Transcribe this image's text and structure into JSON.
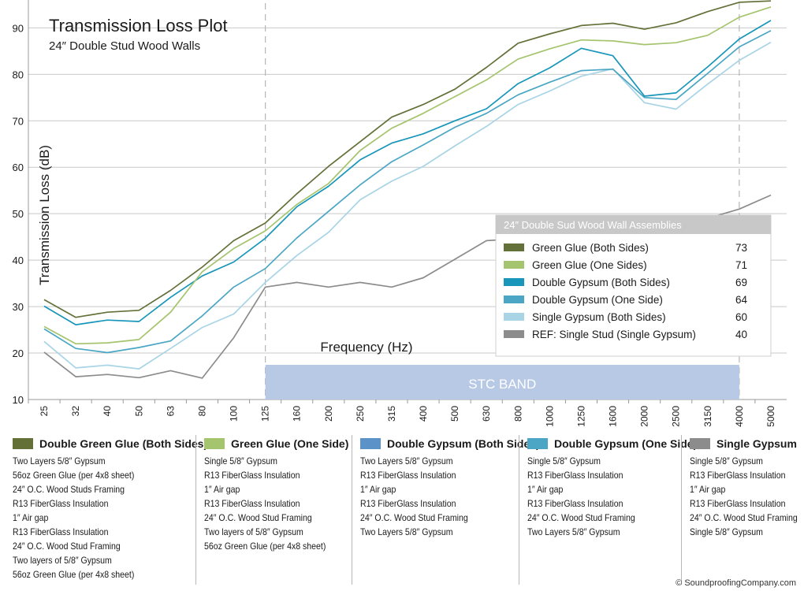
{
  "chart_data": {
    "type": "line",
    "title": "Transmission Loss Plot",
    "subtitle": "24″ Double Stud Wood Walls",
    "xlabel": "Frequency (Hz)",
    "ylabel": "Transmission Loss (dB)",
    "ylim": [
      10,
      96
    ],
    "yticks": [
      10,
      20,
      30,
      40,
      50,
      60,
      70,
      80,
      90
    ],
    "grid": true,
    "categories": [
      "25",
      "32",
      "40",
      "50",
      "63",
      "80",
      "100",
      "125",
      "160",
      "200",
      "250",
      "315",
      "400",
      "500",
      "630",
      "800",
      "1000",
      "1250",
      "1600",
      "2000",
      "2500",
      "3150",
      "4000",
      "5000"
    ],
    "band": {
      "label": "STC BAND",
      "from": "125",
      "to": "4000"
    },
    "legend": {
      "title": "24″ Double Sud Wood Wall Assemblies",
      "placement": "right"
    },
    "series": [
      {
        "name": "Green Glue  (Both Sides)",
        "stc": "73",
        "color": "#637139",
        "values": [
          31.5,
          27.7,
          28.8,
          29.2,
          33.5,
          38.5,
          44.2,
          48.0,
          54.3,
          60.2,
          65.5,
          70.8,
          73.5,
          76.8,
          81.5,
          86.7,
          88.7,
          90.5,
          91.0,
          89.7,
          91.1,
          93.5,
          95.5,
          95.8
        ]
      },
      {
        "name": "Green Glue  (One Sides)",
        "stc": "71",
        "color": "#a5c46e",
        "values": [
          25.7,
          22.0,
          22.2,
          22.9,
          28.8,
          37.5,
          42.5,
          46.3,
          52.0,
          56.5,
          63.6,
          68.4,
          71.6,
          75.2,
          78.8,
          83.3,
          85.5,
          87.4,
          87.2,
          86.4,
          86.8,
          88.4,
          92.3,
          94.5
        ]
      },
      {
        "name": "Double Gypsum (Both Sides)",
        "stc": "69",
        "color": "#1896ba",
        "values": [
          30.1,
          26.1,
          27.1,
          26.8,
          32.0,
          36.6,
          39.6,
          44.7,
          51.5,
          55.9,
          61.6,
          65.2,
          67.2,
          70.0,
          72.6,
          78.0,
          81.4,
          85.6,
          84.0,
          75.3,
          76.0,
          81.6,
          87.6,
          91.6
        ]
      },
      {
        "name": "Double Gypsum (One Side)",
        "stc": "64",
        "color": "#4aa6c4",
        "values": [
          25.2,
          21.0,
          20.1,
          21.2,
          22.6,
          28.0,
          34.2,
          38.2,
          44.8,
          50.5,
          56.2,
          61.2,
          64.8,
          68.6,
          71.6,
          75.6,
          78.3,
          80.8,
          81.1,
          75.0,
          74.6,
          80.2,
          85.9,
          89.4
        ]
      },
      {
        "name": "Single Gypsum (Both Sides)",
        "stc": "60",
        "color": "#a8d4e6",
        "values": [
          22.5,
          16.8,
          17.4,
          16.6,
          21.0,
          25.5,
          28.4,
          35.2,
          41.0,
          46.0,
          53.0,
          57.0,
          60.2,
          64.6,
          68.8,
          73.5,
          76.4,
          79.6,
          81.2,
          73.9,
          72.5,
          77.9,
          83.0,
          86.9
        ]
      },
      {
        "name": "REF: Single Stud (Single Gypsum)",
        "stc": "40",
        "color": "#8c8c8c",
        "values": [
          20.2,
          14.9,
          15.4,
          14.7,
          16.2,
          14.6,
          23.3,
          34.2,
          35.2,
          34.2,
          35.2,
          34.2,
          36.2,
          40.2,
          44.2,
          44.6,
          45.2,
          46.0,
          46.5,
          47.0,
          47.8,
          49.0,
          51.0,
          54.0
        ]
      }
    ]
  },
  "assemblies": [
    {
      "title": "Double Green Glue (Both Sides)",
      "color": "#637139",
      "items": [
        "Two Layers 5/8″ Gypsum",
        "56oz Green Glue (per 4x8 sheet)",
        "24″ O.C. Wood Studs Framing",
        "R13 FiberGlass Insulation",
        "1″ Air gap",
        "R13 FiberGlass Insulation",
        "24″ O.C. Wood Stud Framing",
        "Two layers of 5/8″ Gypsum",
        "56oz Green Glue (per 4x8 sheet)"
      ]
    },
    {
      "title": "Green Glue (One Side)",
      "color": "#a5c46e",
      "items": [
        "Single 5/8″ Gypsum",
        "R13 FiberGlass Insulation",
        "1″ Air gap",
        "R13 FiberGlass Insulation",
        "24″ O.C. Wood Stud Framing",
        "Two layers of 5/8″ Gypsum",
        "56oz Green Glue (per 4x8 sheet)"
      ]
    },
    {
      "title": "Double Gypsum (Both Sides)",
      "color": "#5b93c9",
      "items": [
        "Two Layers 5/8″ Gypsum",
        "R13 FiberGlass Insulation",
        "1″ Air gap",
        "R13 FiberGlass Insulation",
        "24″ O.C. Wood Stud Framing",
        "Two Layers 5/8″ Gypsum"
      ]
    },
    {
      "title": "Double Gypsum (One Side)",
      "color": "#4aa6c4",
      "items": [
        "Single 5/8″ Gypsum",
        "R13 FiberGlass Insulation",
        "1″ Air gap",
        "R13 FiberGlass Insulation",
        "24″ O.C. Wood Stud Framing",
        "Two Layers 5/8″ Gypsum"
      ]
    },
    {
      "title": "Single Gypsum",
      "color": "#8c8c8c",
      "items": [
        "Single 5/8″ Gypsum",
        "R13 FiberGlass Insulation",
        "1″ Air gap",
        "R13 FiberGlass Insulation",
        "24″ O.C. Wood Stud Framing",
        "Single 5/8″ Gypsum"
      ]
    }
  ],
  "copyright": "© SoundproofingCompany.com"
}
